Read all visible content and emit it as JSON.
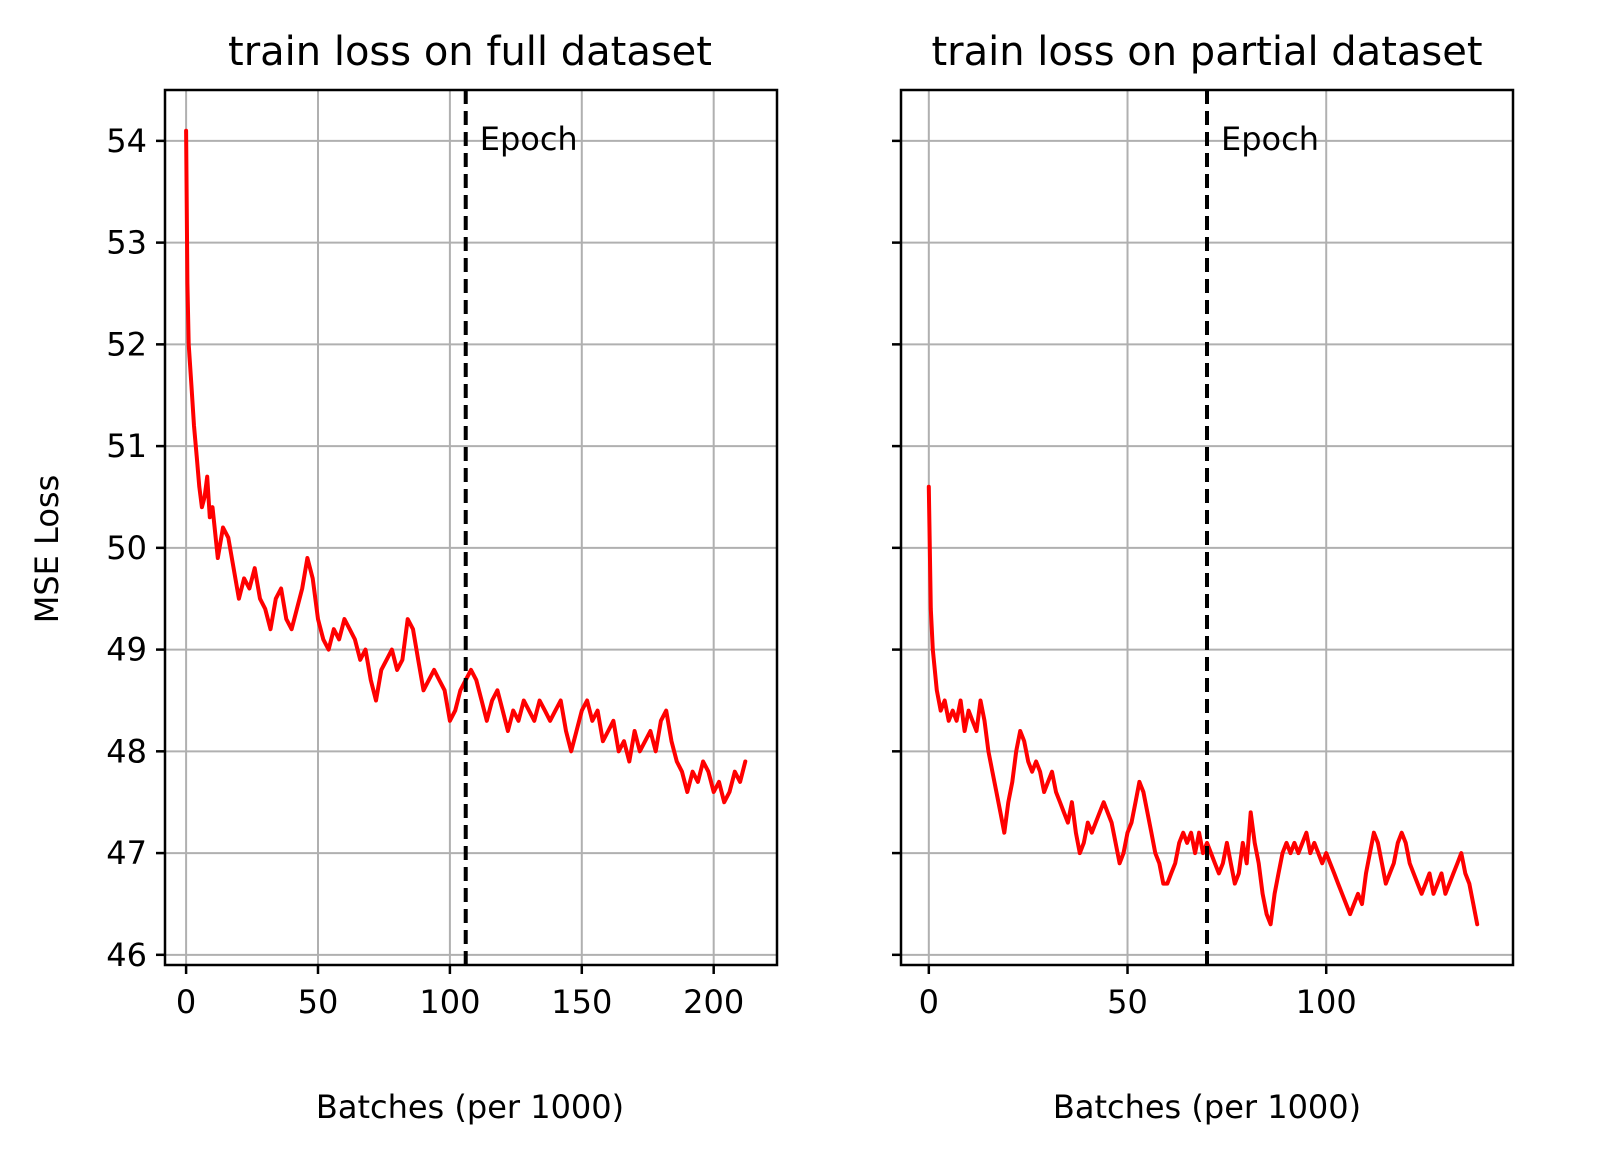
{
  "chart_data": [
    {
      "type": "line",
      "title": "train loss on full dataset",
      "xlabel": "Batches (per 1000)",
      "ylabel": "MSE Loss",
      "xlim": [
        -8,
        224
      ],
      "ylim": [
        45.9,
        54.5
      ],
      "xticks": [
        0,
        50,
        100,
        150,
        200
      ],
      "yticks": [
        46,
        47,
        48,
        49,
        50,
        51,
        52,
        53,
        54
      ],
      "grid": true,
      "color": "#ff0000",
      "epoch_line": {
        "x": 106,
        "label": "Epoch"
      },
      "series": [
        {
          "x": [
            0,
            0.5,
            1,
            2,
            3,
            4,
            5,
            6,
            7,
            8,
            9,
            10,
            12,
            14,
            16,
            18,
            20,
            22,
            24,
            26,
            28,
            30,
            32,
            34,
            36,
            38,
            40,
            42,
            44,
            46,
            48,
            50,
            52,
            54,
            56,
            58,
            60,
            62,
            64,
            66,
            68,
            70,
            72,
            74,
            76,
            78,
            80,
            82,
            84,
            86,
            88,
            90,
            92,
            94,
            96,
            98,
            100,
            102,
            104,
            106,
            108,
            110,
            112,
            114,
            116,
            118,
            120,
            122,
            124,
            126,
            128,
            130,
            132,
            134,
            136,
            138,
            140,
            142,
            144,
            146,
            148,
            150,
            152,
            154,
            156,
            158,
            160,
            162,
            164,
            166,
            168,
            170,
            172,
            174,
            176,
            178,
            180,
            182,
            184,
            186,
            188,
            190,
            192,
            194,
            196,
            198,
            200,
            202,
            204,
            206,
            208,
            210,
            212
          ],
          "y": [
            54.1,
            52.6,
            52.0,
            51.6,
            51.2,
            50.9,
            50.6,
            50.4,
            50.5,
            50.7,
            50.3,
            50.4,
            49.9,
            50.2,
            50.1,
            49.8,
            49.5,
            49.7,
            49.6,
            49.8,
            49.5,
            49.4,
            49.2,
            49.5,
            49.6,
            49.3,
            49.2,
            49.4,
            49.6,
            49.9,
            49.7,
            49.3,
            49.1,
            49.0,
            49.2,
            49.1,
            49.3,
            49.2,
            49.1,
            48.9,
            49.0,
            48.7,
            48.5,
            48.8,
            48.9,
            49.0,
            48.8,
            48.9,
            49.3,
            49.2,
            48.9,
            48.6,
            48.7,
            48.8,
            48.7,
            48.6,
            48.3,
            48.4,
            48.6,
            48.7,
            48.8,
            48.7,
            48.5,
            48.3,
            48.5,
            48.6,
            48.4,
            48.2,
            48.4,
            48.3,
            48.5,
            48.4,
            48.3,
            48.5,
            48.4,
            48.3,
            48.4,
            48.5,
            48.2,
            48.0,
            48.2,
            48.4,
            48.5,
            48.3,
            48.4,
            48.1,
            48.2,
            48.3,
            48.0,
            48.1,
            47.9,
            48.2,
            48.0,
            48.1,
            48.2,
            48.0,
            48.3,
            48.4,
            48.1,
            47.9,
            47.8,
            47.6,
            47.8,
            47.7,
            47.9,
            47.8,
            47.6,
            47.7,
            47.5,
            47.6,
            47.8,
            47.7,
            47.9
          ]
        }
      ]
    },
    {
      "type": "line",
      "title": "train loss on partial dataset",
      "xlabel": "Batches (per 1000)",
      "ylabel": "",
      "xlim": [
        -7,
        147
      ],
      "ylim": [
        45.9,
        54.5
      ],
      "xticks": [
        0,
        50,
        100
      ],
      "yticks": [
        46,
        47,
        48,
        49,
        50,
        51,
        52,
        53,
        54
      ],
      "grid": true,
      "color": "#ff0000",
      "epoch_line": {
        "x": 70,
        "label": "Epoch"
      },
      "series": [
        {
          "x": [
            0,
            0.5,
            1,
            2,
            3,
            4,
            5,
            6,
            7,
            8,
            9,
            10,
            11,
            12,
            13,
            14,
            15,
            16,
            17,
            18,
            19,
            20,
            21,
            22,
            23,
            24,
            25,
            26,
            27,
            28,
            29,
            30,
            31,
            32,
            33,
            34,
            35,
            36,
            37,
            38,
            39,
            40,
            41,
            42,
            43,
            44,
            45,
            46,
            47,
            48,
            49,
            50,
            51,
            52,
            53,
            54,
            55,
            56,
            57,
            58,
            59,
            60,
            61,
            62,
            63,
            64,
            65,
            66,
            67,
            68,
            69,
            70,
            71,
            72,
            73,
            74,
            75,
            76,
            77,
            78,
            79,
            80,
            81,
            82,
            83,
            84,
            85,
            86,
            87,
            88,
            89,
            90,
            91,
            92,
            93,
            94,
            95,
            96,
            97,
            98,
            99,
            100,
            101,
            102,
            103,
            104,
            105,
            106,
            107,
            108,
            109,
            110,
            111,
            112,
            113,
            114,
            115,
            116,
            117,
            118,
            119,
            120,
            121,
            122,
            123,
            124,
            125,
            126,
            127,
            128,
            129,
            130,
            131,
            132,
            133,
            134,
            135,
            136,
            137,
            138
          ],
          "y": [
            50.6,
            49.4,
            49.0,
            48.6,
            48.4,
            48.5,
            48.3,
            48.4,
            48.3,
            48.5,
            48.2,
            48.4,
            48.3,
            48.2,
            48.5,
            48.3,
            48.0,
            47.8,
            47.6,
            47.4,
            47.2,
            47.5,
            47.7,
            48.0,
            48.2,
            48.1,
            47.9,
            47.8,
            47.9,
            47.8,
            47.6,
            47.7,
            47.8,
            47.6,
            47.5,
            47.4,
            47.3,
            47.5,
            47.2,
            47.0,
            47.1,
            47.3,
            47.2,
            47.3,
            47.4,
            47.5,
            47.4,
            47.3,
            47.1,
            46.9,
            47.0,
            47.2,
            47.3,
            47.5,
            47.7,
            47.6,
            47.4,
            47.2,
            47.0,
            46.9,
            46.7,
            46.7,
            46.8,
            46.9,
            47.1,
            47.2,
            47.1,
            47.2,
            47.0,
            47.2,
            47.0,
            47.1,
            47.0,
            46.9,
            46.8,
            46.9,
            47.1,
            46.9,
            46.7,
            46.8,
            47.1,
            46.9,
            47.4,
            47.1,
            46.9,
            46.6,
            46.4,
            46.3,
            46.6,
            46.8,
            47.0,
            47.1,
            47.0,
            47.1,
            47.0,
            47.1,
            47.2,
            47.0,
            47.1,
            47.0,
            46.9,
            47.0,
            46.9,
            46.8,
            46.7,
            46.6,
            46.5,
            46.4,
            46.5,
            46.6,
            46.5,
            46.8,
            47.0,
            47.2,
            47.1,
            46.9,
            46.7,
            46.8,
            46.9,
            47.1,
            47.2,
            47.1,
            46.9,
            46.8,
            46.7,
            46.6,
            46.7,
            46.8,
            46.6,
            46.7,
            46.8,
            46.6,
            46.7,
            46.8,
            46.9,
            47.0,
            46.8,
            46.7,
            46.5,
            46.3
          ]
        }
      ]
    }
  ]
}
